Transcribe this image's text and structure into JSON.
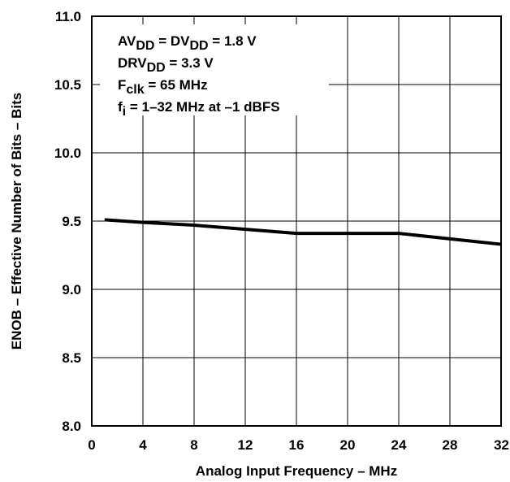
{
  "chart_data": {
    "type": "line",
    "xlabel": "Analog Input Frequency – MHz",
    "ylabel": "ENOB – Effective Number of Bits – Bits",
    "xlim": [
      0,
      32
    ],
    "ylim": [
      8.0,
      11.0
    ],
    "x_ticks": [
      "0",
      "4",
      "8",
      "12",
      "16",
      "20",
      "24",
      "28",
      "32"
    ],
    "y_ticks": [
      "8.0",
      "8.5",
      "9.0",
      "9.5",
      "10.0",
      "10.5",
      "11.0"
    ],
    "grid": true,
    "series": [
      {
        "x": [
          1,
          4,
          8,
          16,
          20,
          24,
          32
        ],
        "y": [
          9.51,
          9.49,
          9.47,
          9.41,
          9.41,
          9.41,
          9.33
        ]
      }
    ],
    "annotation": {
      "lines": [
        [
          {
            "t": "AV",
            "s": false
          },
          {
            "t": "DD",
            "s": true
          },
          {
            "t": " = DV",
            "s": false
          },
          {
            "t": "DD",
            "s": true
          },
          {
            "t": " = 1.8 V",
            "s": false
          }
        ],
        [
          {
            "t": "DRV",
            "s": false
          },
          {
            "t": "DD",
            "s": true
          },
          {
            "t": " = 3.3 V",
            "s": false
          }
        ],
        [
          {
            "t": "F",
            "s": false
          },
          {
            "t": "clk",
            "s": true
          },
          {
            "t": " = 65 MHz",
            "s": false
          }
        ],
        [
          {
            "t": "f",
            "s": false
          },
          {
            "t": "i",
            "s": true
          },
          {
            "t": " = 1–32 MHz at –1 dBFS",
            "s": false
          }
        ]
      ]
    },
    "style": {
      "line_color": "#000000",
      "grid_color": "#000000",
      "background": "#ffffff"
    }
  }
}
